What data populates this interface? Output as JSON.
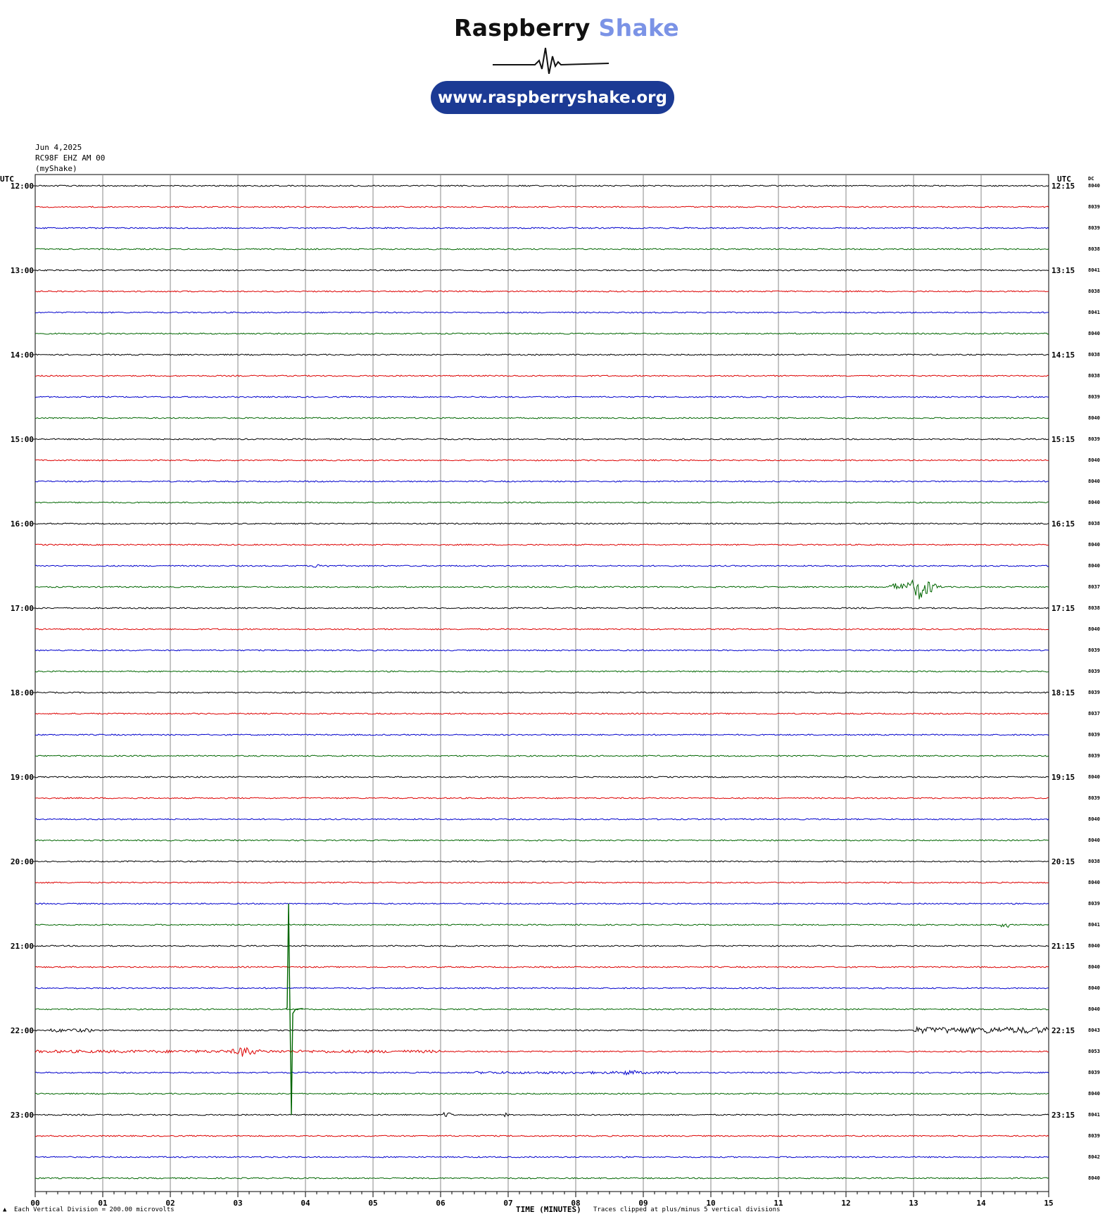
{
  "brand": {
    "name_part1": "Raspberry",
    "name_part2": "Shake",
    "url": "www.raspberryshake.org",
    "color_dark": "#111111",
    "color_accent": "#7b93e6",
    "pill_color": "#1b3a94"
  },
  "header": {
    "date": "Jun 4,2025",
    "station": "RC98F EHZ AM 00",
    "network": "(myShake)"
  },
  "footer": {
    "scale_note": "Each Vertical Division =  200.00 microvolts",
    "xlabel": "TIME (MINUTES)",
    "clip_note": "Traces clipped at plus/minus 5 vertical divisions"
  },
  "chart_data": {
    "type": "line",
    "subtype": "helicorder",
    "left_axis_title": "UTC",
    "right_axis_title": "UTC",
    "dc_header": "DC",
    "xlabel": "TIME (MINUTES)",
    "xlim": [
      0,
      15
    ],
    "x_ticks": [
      "00",
      "01",
      "02",
      "03",
      "04",
      "05",
      "06",
      "07",
      "08",
      "09",
      "10",
      "11",
      "12",
      "13",
      "14",
      "15"
    ],
    "grid": true,
    "trace_colors": [
      "#000000",
      "#dd0000",
      "#0000cc",
      "#006600"
    ],
    "left_hour_labels": [
      "12:00",
      "13:00",
      "14:00",
      "15:00",
      "16:00",
      "17:00",
      "18:00",
      "19:00",
      "20:00",
      "21:00",
      "22:00",
      "23:00"
    ],
    "right_hour_labels": [
      "12:15",
      "13:15",
      "14:15",
      "15:15",
      "16:15",
      "17:15",
      "18:15",
      "19:15",
      "20:15",
      "21:15",
      "22:15",
      "23:15"
    ],
    "dc_offsets": [
      "8040",
      "8039",
      "8039",
      "8038",
      "8041",
      "8038",
      "8041",
      "8040",
      "8038",
      "8038",
      "8039",
      "8040",
      "8039",
      "8040",
      "8040",
      "8040",
      "8038",
      "8040",
      "8040",
      "8037",
      "8038",
      "8040",
      "8039",
      "8039",
      "8039",
      "8037",
      "8039",
      "8039",
      "8040",
      "8039",
      "8040",
      "8040",
      "8038",
      "8040",
      "8039",
      "8041",
      "8040",
      "8040",
      "8040",
      "8040",
      "8043",
      "8053",
      "8039",
      "8040",
      "8041",
      "8039",
      "8042",
      "8040"
    ],
    "events": [
      {
        "trace": 18,
        "start_min": 4.1,
        "end_min": 4.35,
        "amp": 0.25
      },
      {
        "trace": 19,
        "start_min": 12.65,
        "end_min": 13.4,
        "amp": 1.1,
        "peak_min": 13.1,
        "peak_amp": 2.0
      },
      {
        "trace": 35,
        "start_min": 14.3,
        "end_min": 14.45,
        "amp": 0.35
      },
      {
        "trace": 40,
        "start_min": 0.2,
        "end_min": 0.9,
        "amp": 0.25
      },
      {
        "trace": 40,
        "start_min": 13.0,
        "end_min": 15.0,
        "amp": 0.45
      },
      {
        "trace": 41,
        "start_min": 0.0,
        "end_min": 6.0,
        "amp": 0.4,
        "peak_min": 3.1,
        "peak_amp": 0.9
      },
      {
        "trace": 42,
        "start_min": 6.5,
        "end_min": 9.5,
        "amp": 0.35,
        "peak_min": 8.8,
        "peak_amp": 0.5
      },
      {
        "trace": 44,
        "start_min": 6.05,
        "end_min": 6.15,
        "amp": 0.4
      },
      {
        "trace": 44,
        "start_min": 6.95,
        "end_min": 7.0,
        "amp": 0.3
      }
    ],
    "clipped_spike": {
      "trace": 39,
      "at_min": 3.75
    }
  }
}
